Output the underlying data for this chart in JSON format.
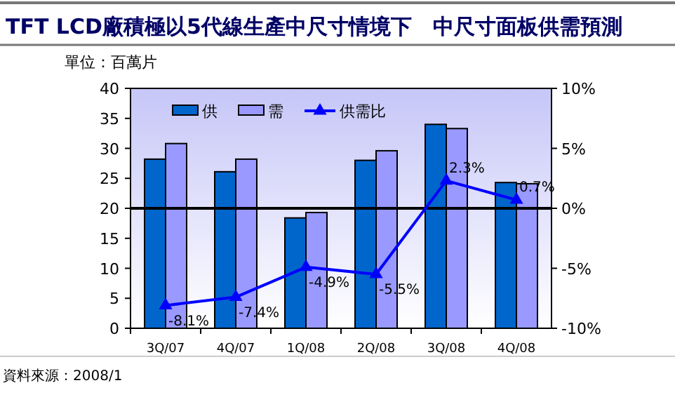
{
  "chart_data": {
    "type": "bar",
    "title": "TFT LCD廠積極以5代線生產中尺寸情境下　中尺寸面板供需預測",
    "subtitle": "單位：百萬片",
    "categories": [
      "3Q/07",
      "4Q/07",
      "1Q/08",
      "2Q/08",
      "3Q/08",
      "4Q/08"
    ],
    "series": [
      {
        "name": "供",
        "color": "#0066cc",
        "values": [
          28.2,
          26.1,
          18.4,
          28.0,
          34.0,
          24.3
        ]
      },
      {
        "name": "需",
        "color": "#9999ff",
        "values": [
          30.8,
          28.2,
          19.3,
          29.6,
          33.3,
          24.1
        ]
      },
      {
        "name": "供需比",
        "type": "line",
        "axis": "y2",
        "color": "#0000ff",
        "marker": "triangle",
        "values": [
          -8.1,
          -7.4,
          -4.9,
          -5.5,
          2.3,
          0.7
        ],
        "value_labels": [
          "-8.1%",
          "-7.4%",
          "-4.9%",
          "-5.5%",
          "2.3%",
          "0.7%"
        ]
      }
    ],
    "ylim": [
      0,
      40
    ],
    "yticks": [
      0,
      5,
      10,
      15,
      20,
      25,
      30,
      35,
      40
    ],
    "y2lim": [
      -10,
      10
    ],
    "y2ticks": [
      {
        "value": -10,
        "label": "-10%"
      },
      {
        "value": -5,
        "label": "-5%"
      },
      {
        "value": 0,
        "label": "0%"
      },
      {
        "value": 5,
        "label": "5%"
      },
      {
        "value": 10,
        "label": "10%"
      }
    ],
    "ref_lines": [
      {
        "axis": "y2",
        "value": 0,
        "color": "#000000"
      }
    ],
    "legend": "top",
    "grid": false,
    "annotations": [
      "資料來源：2008/1"
    ]
  }
}
